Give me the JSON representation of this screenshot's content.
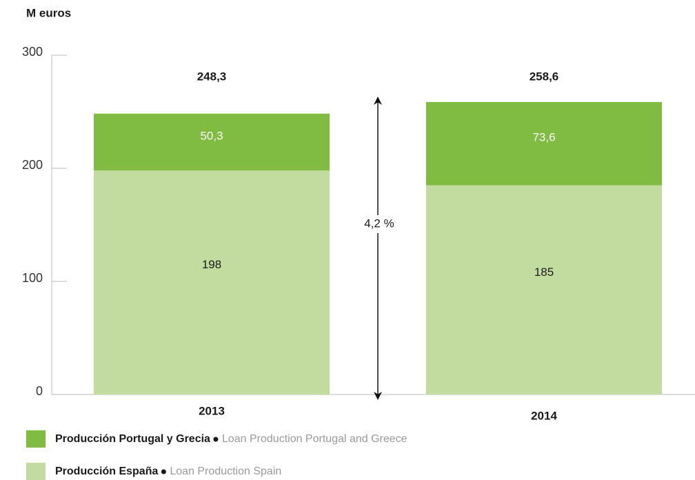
{
  "chart_data": {
    "type": "stacked_bar",
    "y_label": "M euros",
    "categories": [
      "2013",
      "2014"
    ],
    "series": [
      {
        "name": "Producción España",
        "name_en": "Loan Production Spain",
        "color": "#c2dca0",
        "values": [
          198,
          185
        ]
      },
      {
        "name": "Producción Portugal y Grecia",
        "name_en": "Loan Production Portugal and Greece",
        "color": "#80bb42",
        "values": [
          50.3,
          73.6
        ],
        "value_labels": [
          "50,3",
          "73,6"
        ]
      }
    ],
    "totals": [
      248.3,
      258.6
    ],
    "total_labels": [
      "248,3",
      "258,6"
    ],
    "annotation": "4,2 %",
    "ylim": [
      0,
      300
    ],
    "yticks": [
      0,
      100,
      200,
      300
    ]
  }
}
